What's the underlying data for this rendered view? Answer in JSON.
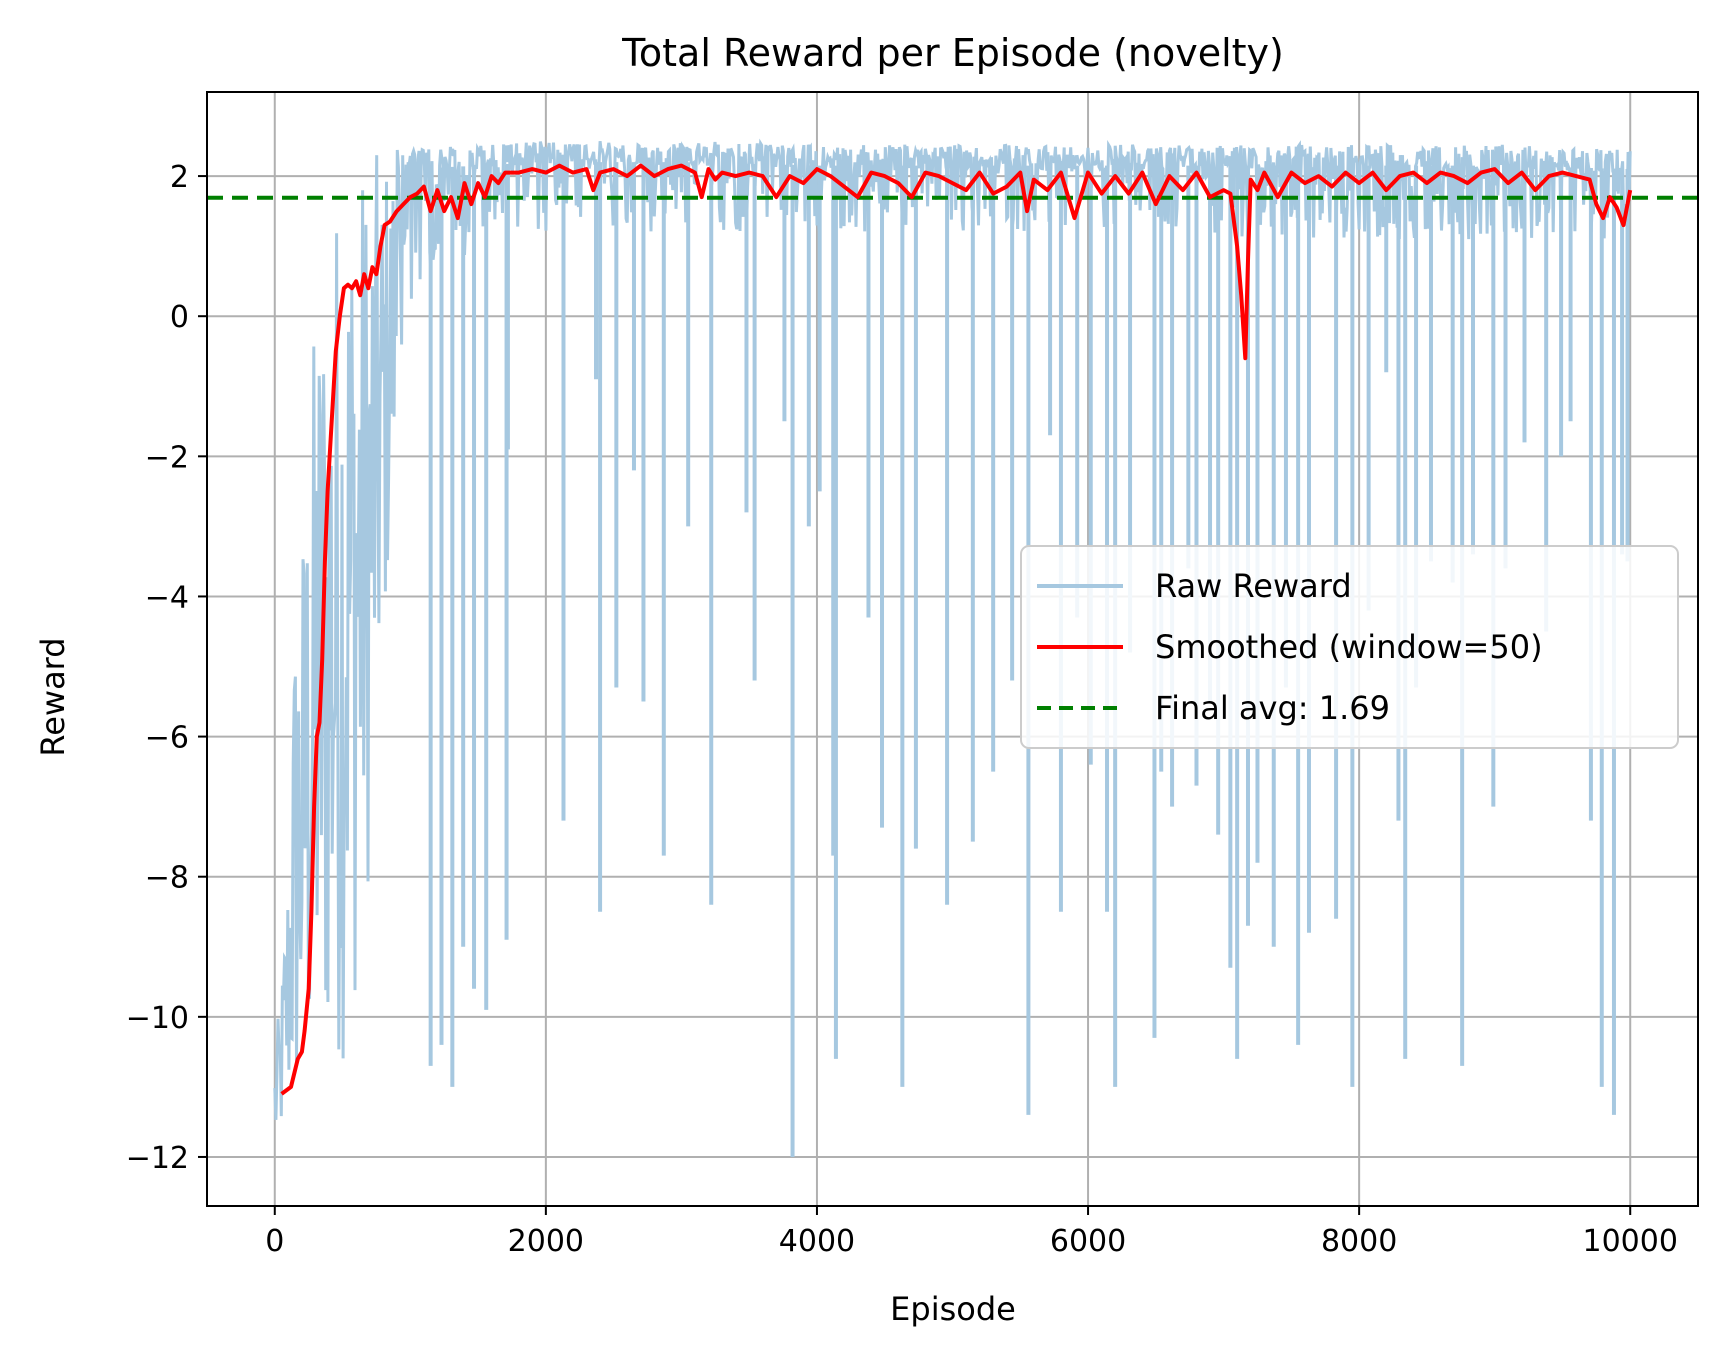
{
  "chart_data": {
    "type": "line",
    "title": "Total Reward per Episode (novelty)",
    "xlabel": "Episode",
    "ylabel": "Reward",
    "xlim": [
      -500,
      10500
    ],
    "ylim": [
      -12.7,
      3.2
    ],
    "xticks": [
      0,
      2000,
      4000,
      6000,
      8000,
      10000
    ],
    "xtick_labels": [
      "0",
      "2000",
      "4000",
      "6000",
      "8000",
      "10000"
    ],
    "yticks": [
      2,
      0,
      -2,
      -4,
      -6,
      -8,
      -10,
      -12
    ],
    "ytick_labels": [
      "2",
      "0",
      "−2",
      "−4",
      "−6",
      "−8",
      "−10",
      "−12"
    ],
    "grid": true,
    "legend_position": "center-right",
    "colors": {
      "raw": "#a6c8e0",
      "smoothed": "#ff0000",
      "final_avg": "#008000"
    },
    "series": [
      {
        "name": "Raw Reward",
        "style": "solid",
        "episodes": 10000,
        "upper_envelope": [
          [
            0,
            -10.5
          ],
          [
            50,
            -9.5
          ],
          [
            100,
            -7.5
          ],
          [
            150,
            -4
          ],
          [
            200,
            -3
          ],
          [
            250,
            -1.5
          ],
          [
            300,
            0.3
          ],
          [
            400,
            1.5
          ],
          [
            500,
            2.2
          ],
          [
            600,
            2.3
          ],
          [
            800,
            2.35
          ],
          [
            1000,
            2.4
          ],
          [
            1500,
            2.45
          ],
          [
            2000,
            2.5
          ],
          [
            3000,
            2.5
          ],
          [
            4000,
            2.45
          ],
          [
            5000,
            2.45
          ],
          [
            6000,
            2.45
          ],
          [
            7000,
            2.45
          ],
          [
            8000,
            2.45
          ],
          [
            9000,
            2.45
          ],
          [
            10000,
            2.4
          ]
        ],
        "lower_envelope": [
          [
            0,
            -12
          ],
          [
            50,
            -11.8
          ],
          [
            100,
            -11.6
          ],
          [
            200,
            -11.5
          ],
          [
            300,
            -11.2
          ],
          [
            400,
            -10.9
          ],
          [
            500,
            -10.7
          ],
          [
            600,
            -9.8
          ],
          [
            700,
            -8
          ],
          [
            800,
            -5
          ],
          [
            900,
            -2
          ],
          [
            1000,
            -1
          ],
          [
            1200,
            0.5
          ],
          [
            1500,
            1
          ],
          [
            2000,
            1.2
          ],
          [
            3000,
            1.2
          ],
          [
            4000,
            1.2
          ],
          [
            5000,
            1.2
          ],
          [
            6000,
            1.2
          ],
          [
            7000,
            1.1
          ],
          [
            8000,
            1.1
          ],
          [
            9000,
            1.1
          ],
          [
            10000,
            1.1
          ]
        ],
        "spikes": [
          [
            1150,
            -10.7
          ],
          [
            1230,
            -10.4
          ],
          [
            1310,
            -11
          ],
          [
            1390,
            -9
          ],
          [
            1470,
            -9.6
          ],
          [
            1560,
            -9.9
          ],
          [
            1720,
            -1.9
          ],
          [
            1710,
            -8.9
          ],
          [
            2130,
            -7.2
          ],
          [
            2370,
            -0.9
          ],
          [
            2400,
            -8.5
          ],
          [
            2520,
            -5.3
          ],
          [
            2650,
            -2.2
          ],
          [
            2720,
            -5.5
          ],
          [
            2870,
            -7.7
          ],
          [
            3050,
            -3
          ],
          [
            3220,
            -8.4
          ],
          [
            3480,
            -2.8
          ],
          [
            3540,
            -5.2
          ],
          [
            3760,
            -1.5
          ],
          [
            3820,
            -12
          ],
          [
            3940,
            -3
          ],
          [
            4020,
            -2.5
          ],
          [
            4120,
            -7.7
          ],
          [
            4140,
            -10.6
          ],
          [
            4380,
            -4.3
          ],
          [
            4480,
            -7.3
          ],
          [
            4630,
            -11
          ],
          [
            4730,
            -7.6
          ],
          [
            4960,
            -8.4
          ],
          [
            5150,
            -7.5
          ],
          [
            5300,
            -6.5
          ],
          [
            5440,
            -5.2
          ],
          [
            5560,
            -11.4
          ],
          [
            5720,
            -1.7
          ],
          [
            5800,
            -8.5
          ],
          [
            5920,
            -4.3
          ],
          [
            6020,
            -6.4
          ],
          [
            6140,
            -8.5
          ],
          [
            6200,
            -11
          ],
          [
            6310,
            -4.8
          ],
          [
            6490,
            -10.3
          ],
          [
            6540,
            -6.5
          ],
          [
            6620,
            -7
          ],
          [
            6740,
            -3.6
          ],
          [
            6800,
            -6.7
          ],
          [
            6900,
            -5.5
          ],
          [
            6960,
            -7.4
          ],
          [
            7050,
            -9.3
          ],
          [
            7100,
            -10.6
          ],
          [
            7180,
            -8.7
          ],
          [
            7250,
            -7.8
          ],
          [
            7370,
            -9
          ],
          [
            7460,
            -5.3
          ],
          [
            7550,
            -10.4
          ],
          [
            7630,
            -8.8
          ],
          [
            7830,
            -8.6
          ],
          [
            7950,
            -11
          ],
          [
            8070,
            -4.2
          ],
          [
            8200,
            -0.8
          ],
          [
            8290,
            -7.2
          ],
          [
            8340,
            -10.6
          ],
          [
            8420,
            -5.3
          ],
          [
            8530,
            -3.5
          ],
          [
            8690,
            -3.8
          ],
          [
            8760,
            -10.7
          ],
          [
            8840,
            -3.4
          ],
          [
            8990,
            -7
          ],
          [
            9080,
            -3.6
          ],
          [
            9220,
            -1.8
          ],
          [
            9380,
            -4.5
          ],
          [
            9490,
            -2
          ],
          [
            9560,
            -1.5
          ],
          [
            9710,
            -7.2
          ],
          [
            9790,
            -11
          ],
          [
            9880,
            -11.4
          ],
          [
            9940,
            -3.4
          ],
          [
            9980,
            -3.5
          ]
        ]
      },
      {
        "name": "Smoothed (window=50)",
        "style": "solid",
        "x": [
          50,
          120,
          170,
          200,
          220,
          250,
          270,
          290,
          310,
          330,
          350,
          370,
          390,
          420,
          450,
          480,
          510,
          540,
          570,
          600,
          630,
          660,
          690,
          720,
          750,
          780,
          810,
          850,
          900,
          950,
          1000,
          1050,
          1100,
          1150,
          1200,
          1250,
          1300,
          1350,
          1400,
          1450,
          1500,
          1550,
          1600,
          1650,
          1700,
          1800,
          1900,
          2000,
          2100,
          2200,
          2300,
          2350,
          2400,
          2500,
          2600,
          2700,
          2800,
          2900,
          3000,
          3100,
          3150,
          3200,
          3250,
          3300,
          3400,
          3500,
          3600,
          3700,
          3800,
          3900,
          4000,
          4100,
          4200,
          4300,
          4400,
          4500,
          4600,
          4700,
          4800,
          4900,
          5000,
          5100,
          5200,
          5300,
          5400,
          5500,
          5550,
          5600,
          5700,
          5800,
          5900,
          6000,
          6100,
          6200,
          6300,
          6400,
          6500,
          6600,
          6700,
          6800,
          6900,
          7000,
          7050,
          7100,
          7130,
          7160,
          7180,
          7200,
          7250,
          7300,
          7400,
          7500,
          7600,
          7700,
          7800,
          7900,
          8000,
          8100,
          8200,
          8300,
          8400,
          8500,
          8600,
          8700,
          8800,
          8900,
          9000,
          9100,
          9200,
          9300,
          9400,
          9500,
          9600,
          9700,
          9750,
          9800,
          9850,
          9900,
          9950,
          10000
        ],
        "values": [
          -11.1,
          -11.0,
          -10.6,
          -10.5,
          -10.2,
          -9.6,
          -8.5,
          -7.0,
          -6.0,
          -5.8,
          -4.9,
          -3.5,
          -2.5,
          -1.5,
          -0.5,
          0,
          0.4,
          0.45,
          0.4,
          0.5,
          0.3,
          0.6,
          0.4,
          0.7,
          0.6,
          1.0,
          1.3,
          1.35,
          1.5,
          1.6,
          1.7,
          1.75,
          1.85,
          1.5,
          1.8,
          1.5,
          1.7,
          1.4,
          1.9,
          1.6,
          1.9,
          1.7,
          2.0,
          1.9,
          2.05,
          2.05,
          2.1,
          2.05,
          2.15,
          2.05,
          2.1,
          1.8,
          2.05,
          2.1,
          2.0,
          2.15,
          2.0,
          2.1,
          2.15,
          2.05,
          1.7,
          2.1,
          1.95,
          2.05,
          2.0,
          2.05,
          2.0,
          1.7,
          2.0,
          1.9,
          2.1,
          2.0,
          1.85,
          1.7,
          2.05,
          2.0,
          1.9,
          1.7,
          2.05,
          2.0,
          1.9,
          1.8,
          2.05,
          1.75,
          1.85,
          2.05,
          1.5,
          1.95,
          1.8,
          2.05,
          1.4,
          2.05,
          1.75,
          2.0,
          1.75,
          2.05,
          1.6,
          2.0,
          1.8,
          2.05,
          1.7,
          1.8,
          1.75,
          1.0,
          0.3,
          -0.6,
          0.8,
          1.95,
          1.8,
          2.05,
          1.7,
          2.05,
          1.9,
          2.0,
          1.85,
          2.05,
          1.9,
          2.05,
          1.8,
          2.0,
          2.05,
          1.9,
          2.05,
          2.0,
          1.9,
          2.05,
          2.1,
          1.9,
          2.05,
          1.8,
          2.0,
          2.05,
          2.0,
          1.95,
          1.6,
          1.4,
          1.7,
          1.55,
          1.3,
          1.8
        ]
      },
      {
        "name": "Final avg: 1.69",
        "style": "dashed",
        "y": 1.69
      }
    ]
  }
}
